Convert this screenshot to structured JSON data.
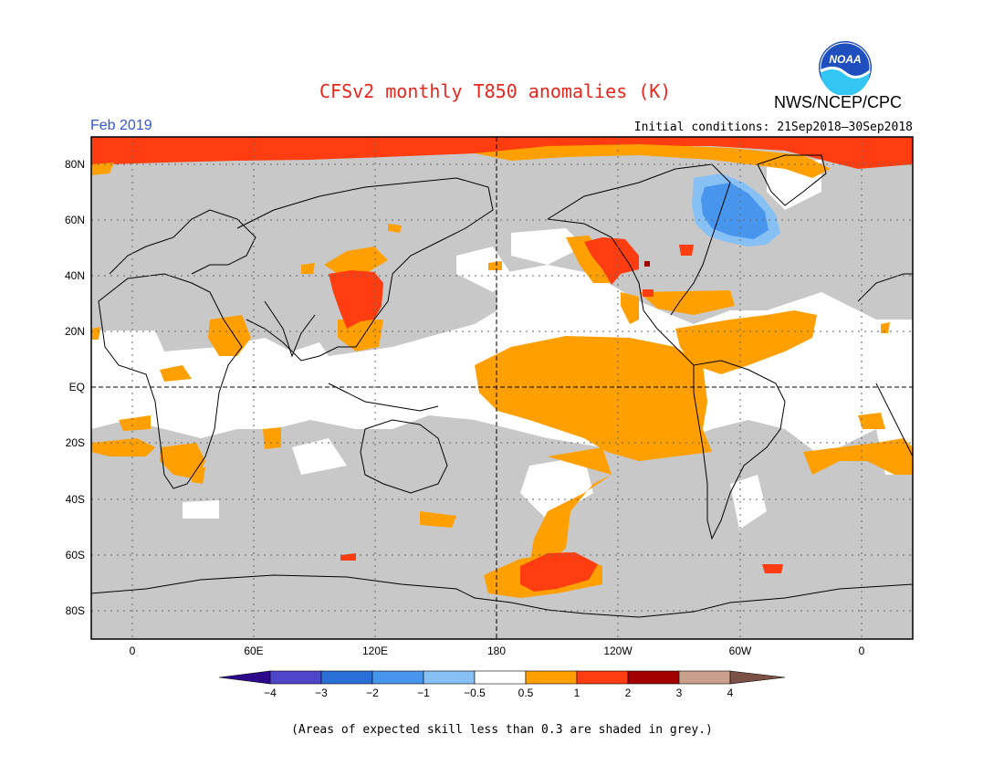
{
  "title": "CFSv2 monthly T850 anomalies (K)",
  "agency": "NWS/NCEP/CPC",
  "logo_text": "NOAA",
  "month": "Feb 2019",
  "initial_conditions": "Initial conditions: 21Sep2018–30Sep2018",
  "caption": "(Areas of expected skill less than 0.3 are shaded in grey.)",
  "lat_labels": [
    "80N",
    "60N",
    "40N",
    "20N",
    "EQ",
    "20S",
    "40S",
    "60S",
    "80S"
  ],
  "lon_labels": [
    "0",
    "60E",
    "120E",
    "180",
    "120W",
    "60W",
    "0"
  ],
  "colorbar": {
    "ticks": [
      "−4",
      "−3",
      "−2",
      "−1",
      "−0.5",
      "0.5",
      "1",
      "2",
      "3",
      "4"
    ],
    "colors": [
      "#2d0a8c",
      "#4e45c9",
      "#2a6fd6",
      "#4795ec",
      "#86c0f4",
      "#ffffff",
      "#ff9f00",
      "#ff3d10",
      "#a30000",
      "#c9a08c",
      "#7c5044"
    ]
  },
  "legend_colors": {
    "low_skill": "#c8c8c8",
    "near_zero": "#ffffff",
    "warm_0_5_1": "#ff9f00",
    "warm_1_2": "#ff3d10",
    "warm_2_3": "#a30000",
    "cool_1_2": "#4795ec",
    "cool_0_5_1": "#86c0f4"
  }
}
